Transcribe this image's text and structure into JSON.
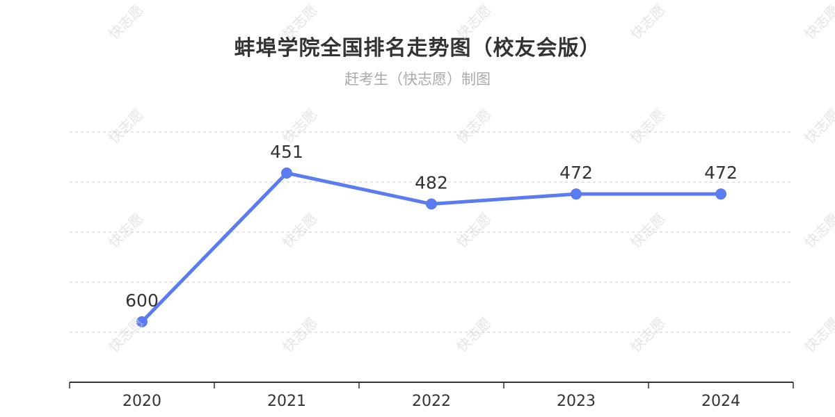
{
  "header": {
    "title": "蚌埠学院全国排名走势图（校友会版）",
    "subtitle": "赶考生（快志愿）制图"
  },
  "watermark": "快志愿",
  "colors": {
    "line": "#5b7cf0",
    "grid": "#c8c8c8",
    "axis": "#333333",
    "label": "#333333",
    "title": "#333333",
    "subtitle": "#aaaaaa"
  },
  "chart_data": {
    "type": "line",
    "title": "蚌埠学院全国排名走势图（校友会版）",
    "subtitle": "赶考生（快志愿）制图",
    "categories": [
      "2020",
      "2021",
      "2022",
      "2023",
      "2024"
    ],
    "values": [
      600,
      451,
      482,
      472,
      472
    ],
    "series": [
      {
        "name": "全国排名",
        "values": [
          600,
          451,
          482,
          472,
          472
        ]
      }
    ],
    "xlabel": "",
    "ylabel": "",
    "y_inverted": true,
    "ylim": [
      410,
      660
    ],
    "grid": true,
    "y_axis_visible": false,
    "data_labels": true,
    "legend": "none"
  }
}
